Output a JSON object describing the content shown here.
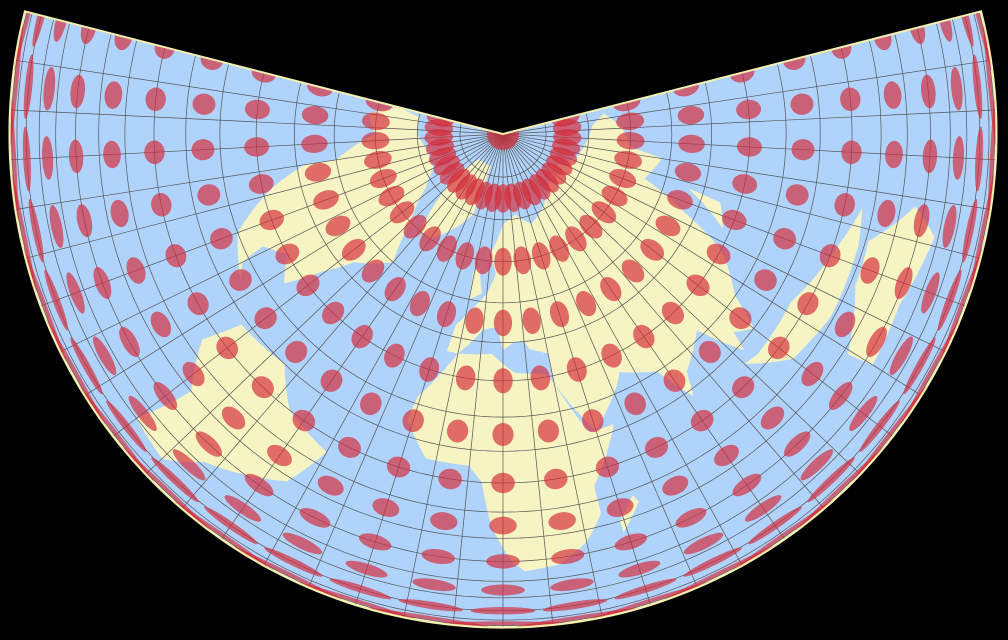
{
  "map": {
    "colors": {
      "background": "#000000",
      "ocean": "#b0d3fc",
      "land": "#f6f4c2",
      "graticule": "#555555",
      "indicatrix": "#d42c3a",
      "border": "#f4f0b0"
    },
    "graticule_step_deg": 10,
    "indicatrix_step_lon_deg": 15,
    "indicatrix_step_lat_deg": 15,
    "icons": []
  }
}
